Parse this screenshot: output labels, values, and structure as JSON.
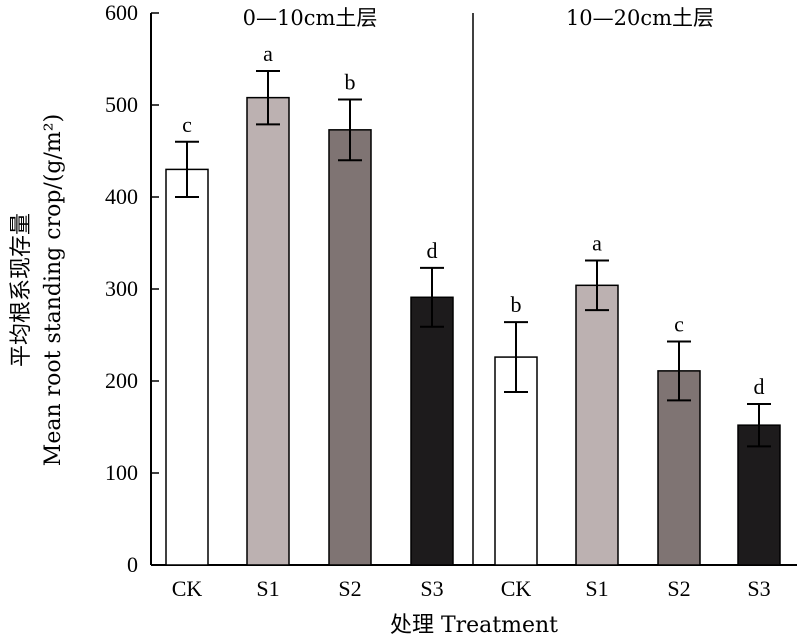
{
  "chart_data": {
    "type": "bar",
    "title": "",
    "xlabel": "处理 Treatment",
    "ylabel_cn": "平均根系现存量",
    "ylabel_en": "Mean root standing crop/(g/m²)",
    "ylim": [
      0,
      600
    ],
    "yticks": [
      "0",
      "100",
      "200",
      "300",
      "400",
      "500",
      "600"
    ],
    "categories": [
      "CK",
      "S1",
      "S2",
      "S3"
    ],
    "colors": {
      "CK": "#ffffff",
      "S1": "#bcb1b1",
      "S2": "#7f7473",
      "S3": "#1d1b1c"
    },
    "grid": false,
    "legend": "none",
    "panels": [
      {
        "title": "0—10cm土层",
        "values": [
          430,
          508,
          473,
          291
        ],
        "errors": [
          30,
          29,
          33,
          32
        ],
        "letters": [
          "c",
          "a",
          "b",
          "d"
        ]
      },
      {
        "title": "10—20cm土层",
        "values": [
          226,
          304,
          211,
          152
        ],
        "errors": [
          38,
          27,
          32,
          23
        ],
        "letters": [
          "b",
          "a",
          "c",
          "d"
        ]
      }
    ]
  }
}
